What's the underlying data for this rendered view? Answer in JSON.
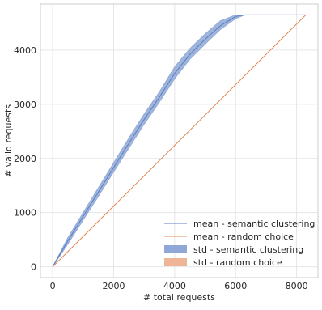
{
  "chart_data": {
    "type": "line",
    "title": "",
    "xlabel": "# total requests",
    "ylabel": "# valid requests",
    "xlim": [
      -400,
      8700
    ],
    "ylim": [
      -200,
      4850
    ],
    "xticks": [
      0,
      2000,
      4000,
      6000,
      8000
    ],
    "yticks": [
      0,
      1000,
      2000,
      3000,
      4000
    ],
    "xtick_labels": [
      "0",
      "2000",
      "4000",
      "6000",
      "8000"
    ],
    "ytick_labels": [
      "0",
      "1000",
      "2000",
      "3000",
      "4000"
    ],
    "grid": true,
    "legend_position": "bottom-right",
    "colors": {
      "semantic": "#5b7fc1",
      "semantic_band": "#8fa8d6",
      "random": "#e48a5a",
      "random_band": "#efb597",
      "grid": "#e6e6e6",
      "frame": "#cccccc"
    },
    "series": [
      {
        "name": "mean - semantic clustering",
        "kind": "line",
        "color": "#5b7fc1",
        "x": [
          0,
          500,
          1000,
          1500,
          2000,
          2500,
          3000,
          3500,
          4000,
          4500,
          5000,
          5500,
          6000,
          6300,
          8300
        ],
        "y": [
          0,
          480,
          930,
          1380,
          1830,
          2280,
          2720,
          3130,
          3570,
          3920,
          4200,
          4450,
          4620,
          4650,
          4650
        ]
      },
      {
        "name": "mean - random choice",
        "kind": "line",
        "color": "#e48a5a",
        "x": [
          0,
          8300
        ],
        "y": [
          0,
          4650
        ]
      },
      {
        "name": "std - semantic clustering",
        "kind": "band",
        "color": "#8fa8d6",
        "x": [
          0,
          500,
          1000,
          1500,
          2000,
          2500,
          3000,
          3500,
          4000,
          4500,
          5000,
          5500,
          6000,
          6300,
          8300
        ],
        "lower": [
          0,
          420,
          860,
          1300,
          1750,
          2190,
          2630,
          3040,
          3470,
          3830,
          4110,
          4380,
          4580,
          4650,
          4650
        ],
        "upper": [
          0,
          540,
          1000,
          1460,
          1920,
          2380,
          2820,
          3230,
          3690,
          4030,
          4300,
          4540,
          4650,
          4650,
          4650
        ]
      },
      {
        "name": "std - random choice",
        "kind": "band",
        "color": "#efb597",
        "x": [
          0,
          8300
        ],
        "lower": [
          0,
          4650
        ],
        "upper": [
          0,
          4650
        ]
      }
    ]
  }
}
